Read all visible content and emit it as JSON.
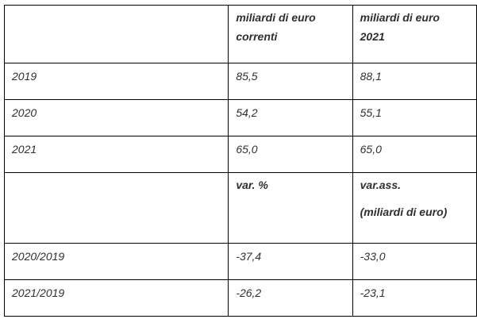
{
  "header1": {
    "col2": [
      "miliardi di euro",
      "correnti"
    ],
    "col3": [
      "miliardi di euro",
      "2021"
    ]
  },
  "rows1": [
    {
      "label": "2019",
      "v1": "85,5",
      "v2": "88,1"
    },
    {
      "label": "2020",
      "v1": "54,2",
      "v2": "55,1"
    },
    {
      "label": "2021",
      "v1": "65,0",
      "v2": "65,0"
    }
  ],
  "header2": {
    "col2": "var. %",
    "col3": [
      "var.ass.",
      "(miliardi di euro)"
    ]
  },
  "rows2": [
    {
      "label": "2020/2019",
      "v1": "-37,4",
      "v2": "-33,0"
    },
    {
      "label": "2021/2019",
      "v1": "-26,2",
      "v2": "-23,1"
    }
  ]
}
